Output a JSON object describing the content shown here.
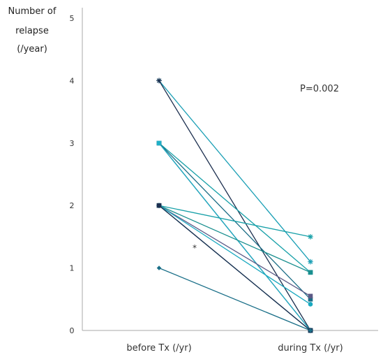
{
  "chart_data": {
    "type": "line",
    "ylabel_lines": [
      "Number of",
      "relapse",
      "(/year)"
    ],
    "categories": [
      "before Tx (/yr)",
      "during Tx (/yr)"
    ],
    "ylim": [
      0,
      5
    ],
    "yticks": [
      "0",
      "1",
      "2",
      "3",
      "4",
      "5"
    ],
    "annotations": {
      "p_value": "P=0.002",
      "asterisk": "*"
    },
    "grid": false,
    "legend": "none",
    "series": [
      {
        "values": [
          4,
          1.1
        ],
        "color": "#1a9fb5",
        "marker": "star"
      },
      {
        "values": [
          4,
          0
        ],
        "color": "#1c2f4f",
        "marker": "star"
      },
      {
        "values": [
          3,
          0.93
        ],
        "color": "#17a0a8",
        "marker": "square"
      },
      {
        "values": [
          3,
          0.5
        ],
        "color": "#1b6d86",
        "marker": "square"
      },
      {
        "values": [
          3,
          0
        ],
        "color": "#1c2f4f",
        "marker": "square"
      },
      {
        "values": [
          3,
          0
        ],
        "color": "#1fb0c7",
        "marker": "square"
      },
      {
        "values": [
          2,
          1.5
        ],
        "color": "#17a0a8",
        "marker": "star"
      },
      {
        "values": [
          2,
          0.93
        ],
        "color": "#1a8f8f",
        "marker": "square"
      },
      {
        "values": [
          2,
          0.55
        ],
        "color": "#5c5a86",
        "marker": "square"
      },
      {
        "values": [
          2,
          0.42
        ],
        "color": "#1aa9c0",
        "marker": "circle"
      },
      {
        "values": [
          2,
          0
        ],
        "color": "#1b6d86",
        "marker": "triangle"
      },
      {
        "values": [
          2,
          0
        ],
        "color": "#1c2f4f",
        "marker": "square"
      },
      {
        "values": [
          1,
          0
        ],
        "color": "#1a6f88",
        "marker": "diamond"
      }
    ]
  }
}
